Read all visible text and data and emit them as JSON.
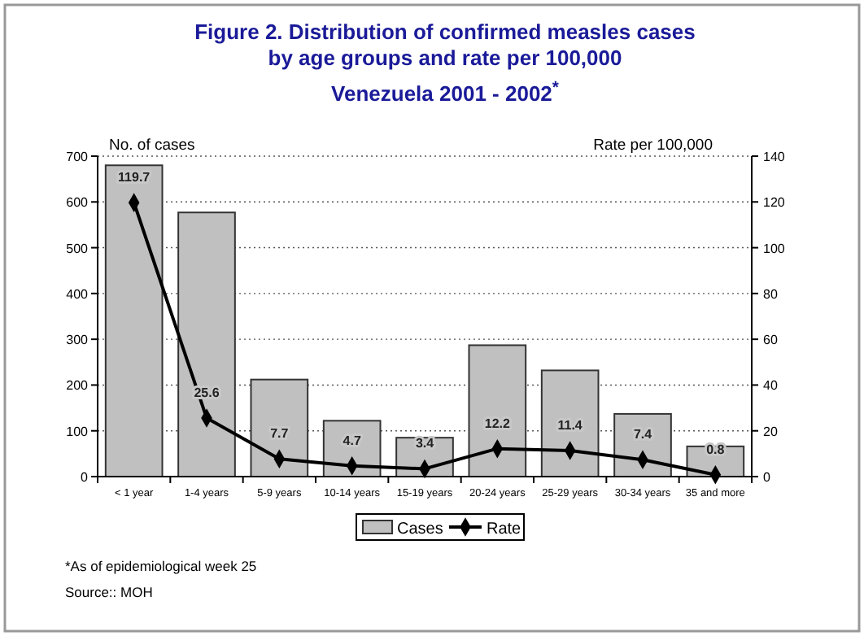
{
  "chart_data": {
    "type": "bar",
    "title": "Figure 2. Distribution of confirmed measles cases\nby age groups and rate per 100,000",
    "subtitle": "Venezuela  2001 - 2002$^{*}$",
    "ylabel": "No. of  cases",
    "y2label": "Rate per 100,000",
    "categories": [
      "< 1 year",
      "1-4 years",
      "5-9 years",
      "10-14 years",
      "15-19 years",
      "20-24 years",
      "25-29 years",
      "30-34 years",
      "35 and more"
    ],
    "series": [
      {
        "name": "Cases",
        "color": "#c0c0c0",
        "values": [
          680,
          577,
          212,
          122,
          85,
          287,
          232,
          137,
          66
        ]
      },
      {
        "name": "Rate",
        "type": "line",
        "axis": "y2",
        "color": "#000000",
        "marker": "diamond",
        "values": [
          119.7,
          25.6,
          7.7,
          4.7,
          3.4,
          12.2,
          11.4,
          7.4,
          0.8
        ],
        "value_labels": [
          "119.7",
          "25.6",
          "7.7",
          "4.7",
          "3.4",
          "12.2",
          "11.4",
          "7.4",
          "0.8"
        ]
      }
    ],
    "ylim": [
      0,
      700
    ],
    "yticks": [
      0,
      100,
      200,
      300,
      400,
      500,
      600,
      700
    ],
    "y2lim": [
      0,
      140
    ],
    "y2ticks": [
      0,
      20,
      40,
      60,
      80,
      100,
      120,
      140
    ],
    "grid": "y",
    "legend": "bottom",
    "annotations": [
      "*As of epidemiological week 25",
      "Source:: MOH"
    ]
  }
}
